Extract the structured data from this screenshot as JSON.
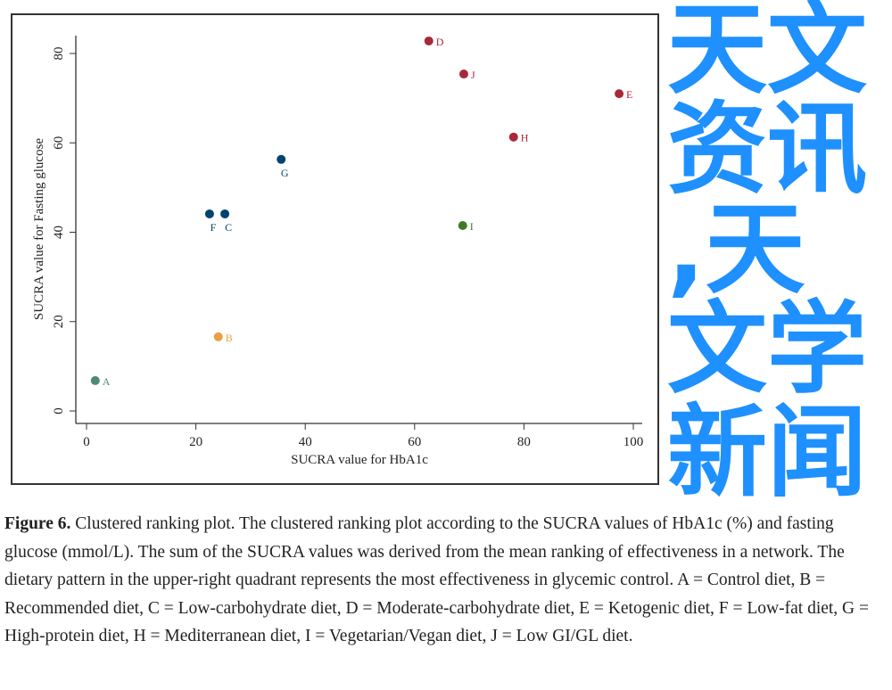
{
  "chart_data": {
    "type": "scatter",
    "title": "",
    "xlabel": "SUCRA value for HbA1c",
    "ylabel": "SUCRA value for Fasting glucose",
    "xlim": [
      0,
      100
    ],
    "ylim": [
      0,
      85
    ],
    "xticks": [
      0,
      20,
      40,
      60,
      80,
      100
    ],
    "yticks": [
      0,
      20,
      40,
      60,
      80
    ],
    "grid": false,
    "points": [
      {
        "label": "A",
        "x": 1.6,
        "y": 6.8,
        "color": "#4f8a78"
      },
      {
        "label": "B",
        "x": 24.1,
        "y": 16.6,
        "color": "#e8a040"
      },
      {
        "label": "C",
        "x": 25.3,
        "y": 44.1,
        "color": "#00446e"
      },
      {
        "label": "D",
        "x": 62.6,
        "y": 82.8,
        "color": "#a8283a"
      },
      {
        "label": "E",
        "x": 97.4,
        "y": 71.0,
        "color": "#a8283a"
      },
      {
        "label": "F",
        "x": 22.5,
        "y": 44.1,
        "color": "#00446e"
      },
      {
        "label": "G",
        "x": 35.6,
        "y": 56.3,
        "color": "#00446e"
      },
      {
        "label": "H",
        "x": 78.1,
        "y": 61.3,
        "color": "#a8283a"
      },
      {
        "label": "I",
        "x": 68.8,
        "y": 41.5,
        "color": "#3e7a26"
      },
      {
        "label": "J",
        "x": 69.0,
        "y": 75.4,
        "color": "#a8283a"
      }
    ]
  },
  "caption": {
    "label": "Figure 6.",
    "text": " Clustered ranking plot. The clustered ranking plot according to the SUCRA values of HbA1c (%) and fasting glucose (mmol/L). The sum of the SUCRA values was derived from the mean ranking of effectiveness in a network. The dietary pattern in the upper-right quadrant represents the most effectiveness in glycemic control. A = Control diet, B = Recommended diet, C = Low-carbohydrate diet, D = Moderate-carbohydrate diet, E = Ketogenic diet, F = Low-fat diet, G = High-protein diet, H = Mediterranean diet, I = Vegetarian/Vegan diet, J = Low GI/GL diet."
  },
  "watermark": {
    "line1": "天文资讯,天文学",
    "line2": "新闻",
    "color": "#1e90ff"
  }
}
